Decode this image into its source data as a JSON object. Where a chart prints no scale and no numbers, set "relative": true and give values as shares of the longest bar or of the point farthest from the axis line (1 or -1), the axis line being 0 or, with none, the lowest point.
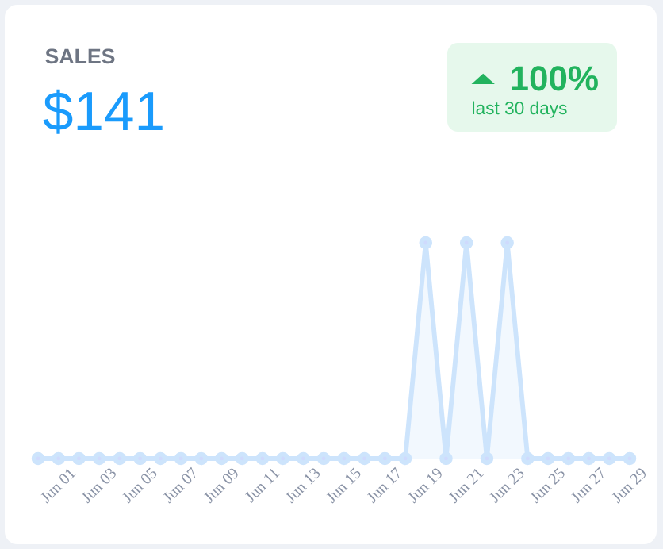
{
  "chart_data": {
    "type": "area",
    "title": "SALES",
    "subtitle": "$141",
    "annotations": [
      "100%",
      "last 30 days"
    ],
    "categories": [
      null,
      "Jun 01",
      null,
      "Jun 03",
      null,
      "Jun 05",
      null,
      "Jun 07",
      null,
      "Jun 09",
      null,
      "Jun 11",
      null,
      "Jun 13",
      null,
      "Jun 15",
      null,
      "Jun 17",
      null,
      "Jun 19",
      null,
      "Jun 21",
      null,
      "Jun 23",
      null,
      "Jun 25",
      null,
      "Jun 27",
      null,
      "Jun 29"
    ],
    "series": [
      {
        "color": "#cde4fc",
        "values": [
          0,
          0,
          0,
          0,
          0,
          0,
          0,
          0,
          0,
          0,
          0,
          0,
          0,
          0,
          0,
          0,
          0,
          0,
          0,
          1,
          0,
          1,
          0,
          1,
          0,
          0,
          0,
          0,
          0,
          0
        ]
      }
    ],
    "relative": true,
    "marker": "circle"
  }
}
